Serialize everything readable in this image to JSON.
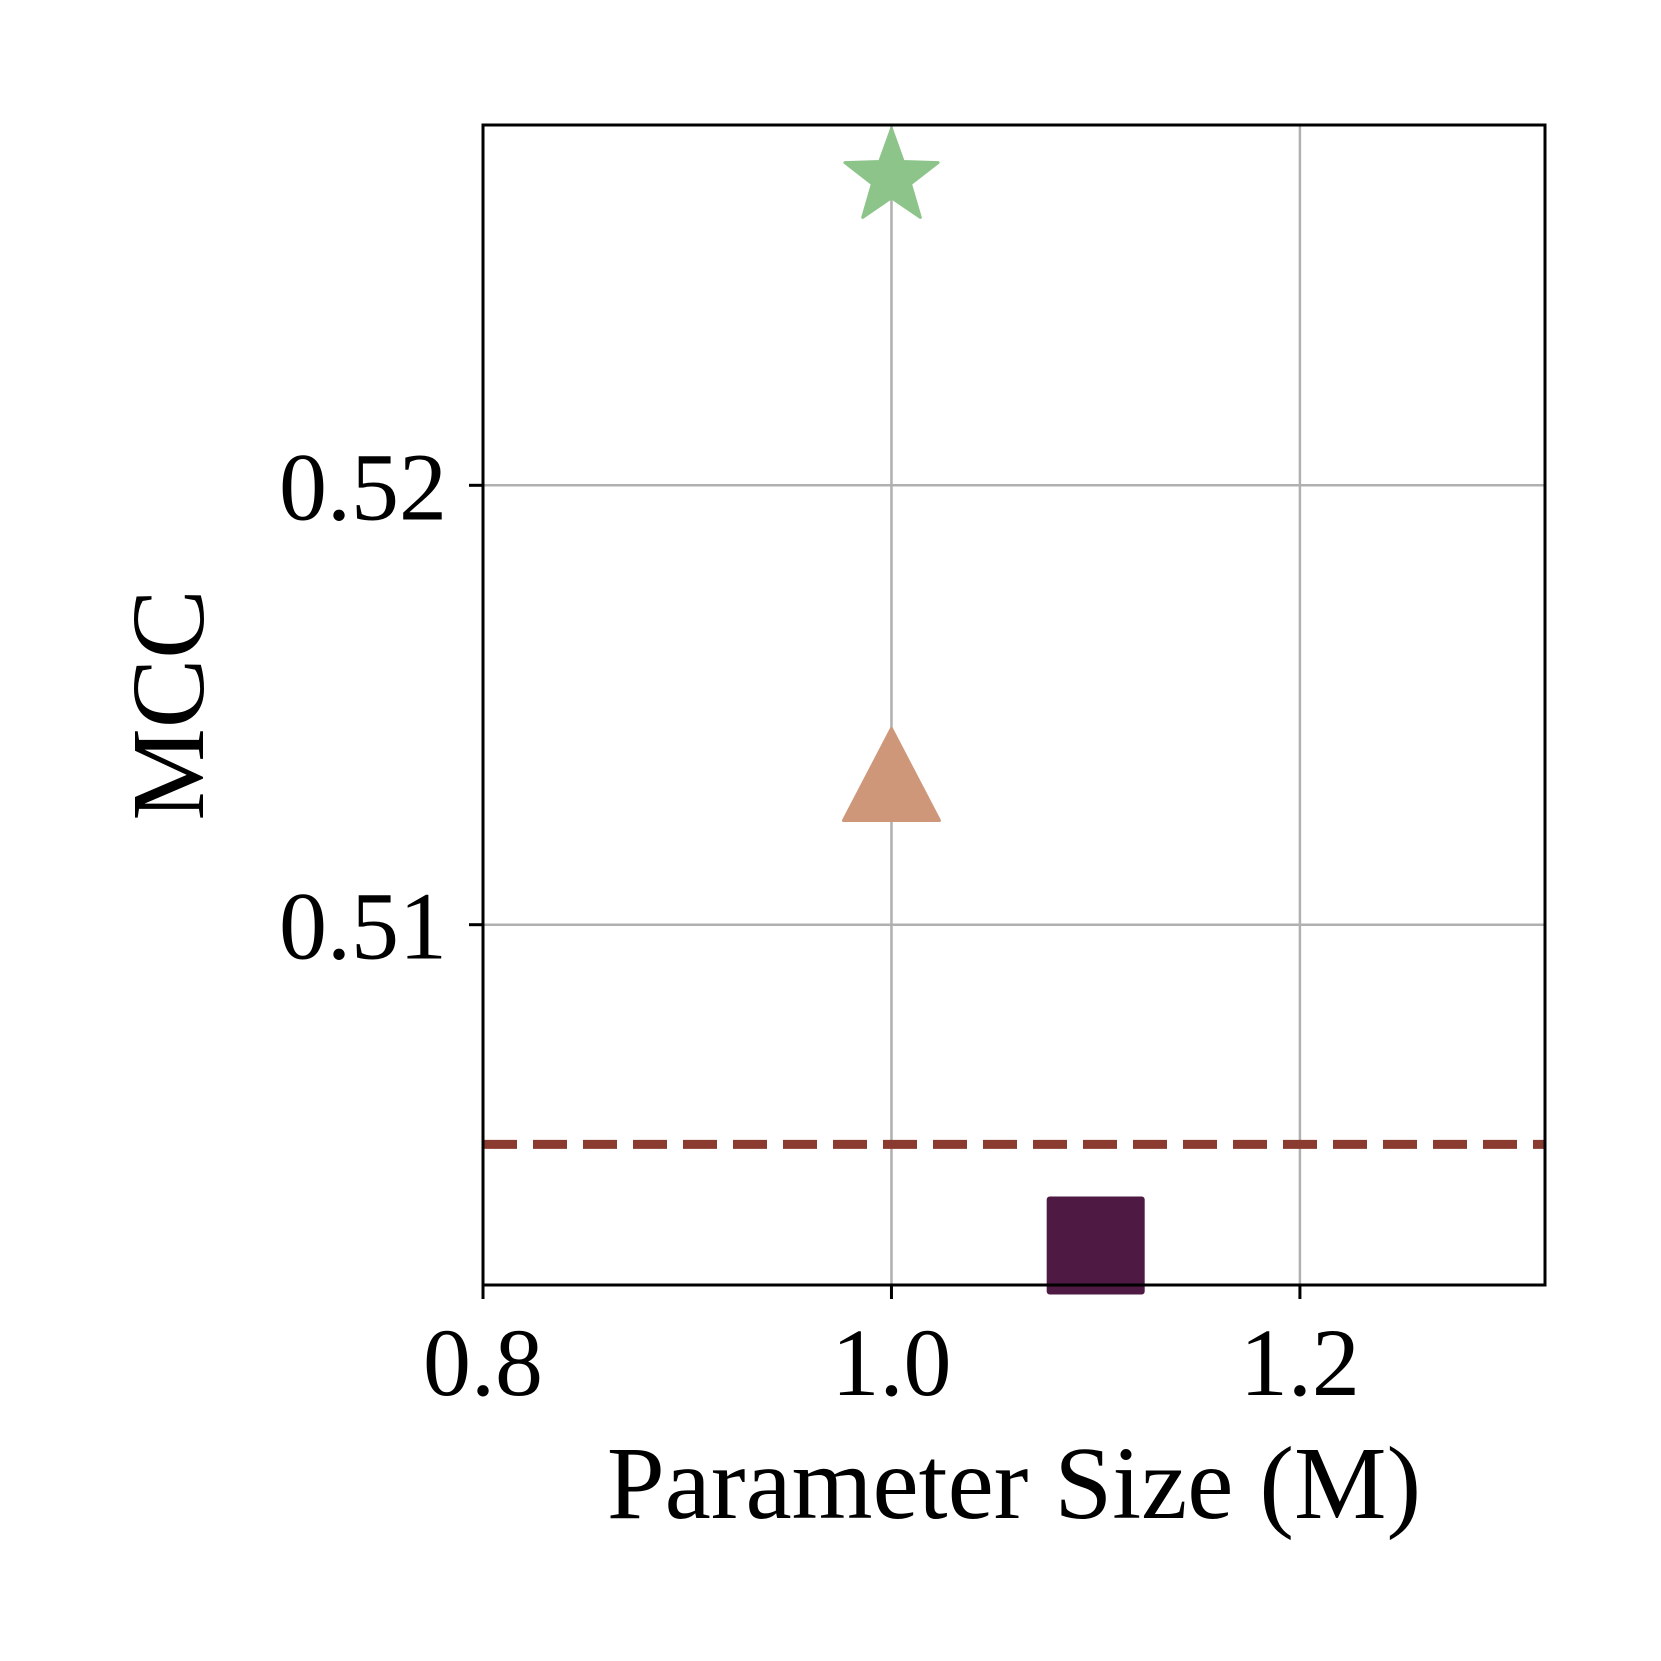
{
  "chart_data": {
    "type": "scatter",
    "xlabel": "Parameter Size (M)",
    "ylabel": "MCC",
    "xlim": [
      0.8,
      1.32
    ],
    "ylim": [
      0.5018,
      0.5282
    ],
    "xticks": [
      {
        "value": 0.8,
        "label": "0.8"
      },
      {
        "value": 1.0,
        "label": "1.0"
      },
      {
        "value": 1.2,
        "label": "1.2"
      }
    ],
    "yticks": [
      {
        "value": 0.51,
        "label": "0.51"
      },
      {
        "value": 0.52,
        "label": "0.52"
      }
    ],
    "grid": true,
    "points": [
      {
        "x": 1.0,
        "y": 0.527,
        "marker": "star",
        "color": "#8cc48a"
      },
      {
        "x": 1.0,
        "y": 0.5131,
        "marker": "triangle",
        "color": "#cf977a"
      },
      {
        "x": 1.1,
        "y": 0.5027,
        "marker": "square",
        "color": "#4e1a43"
      }
    ],
    "reference_lines": [
      {
        "y": 0.505,
        "style": "dashed",
        "color": "#8b3a2f"
      }
    ]
  }
}
